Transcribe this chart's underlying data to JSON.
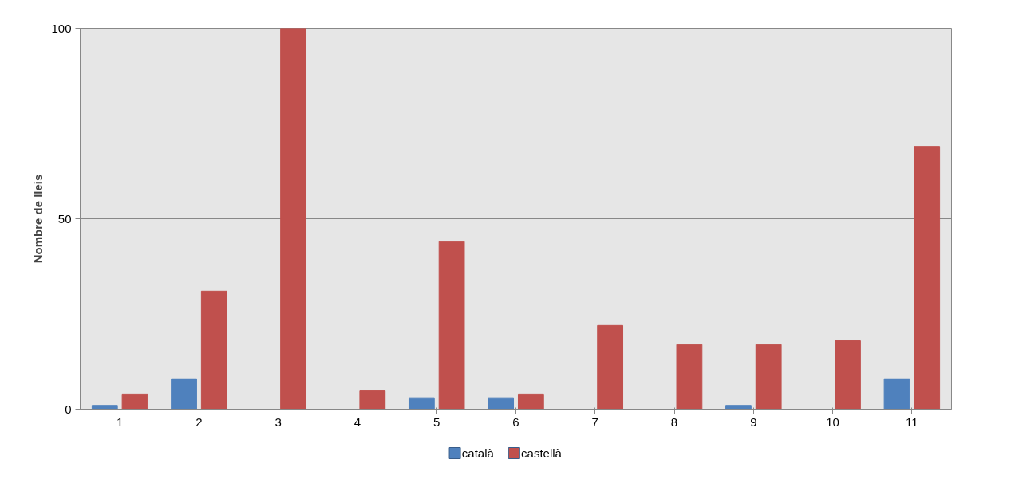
{
  "chart_data": {
    "type": "bar",
    "ylabel": "Nombre de lleis",
    "categories": [
      "1",
      "2",
      "3",
      "4",
      "5",
      "6",
      "7",
      "8",
      "9",
      "10",
      "11"
    ],
    "series": [
      {
        "name": "català",
        "color": "#4f81bd",
        "values": [
          1,
          8,
          0,
          0,
          3,
          3,
          0,
          0,
          1,
          0,
          8
        ]
      },
      {
        "name": "castellà",
        "color": "#c0504d",
        "values": [
          4,
          31,
          100,
          5,
          44,
          4,
          22,
          17,
          17,
          18,
          69
        ]
      }
    ],
    "ylim": [
      0,
      100
    ],
    "yticks": [
      0,
      50,
      100
    ],
    "grid": "y",
    "legend": "bottom"
  }
}
